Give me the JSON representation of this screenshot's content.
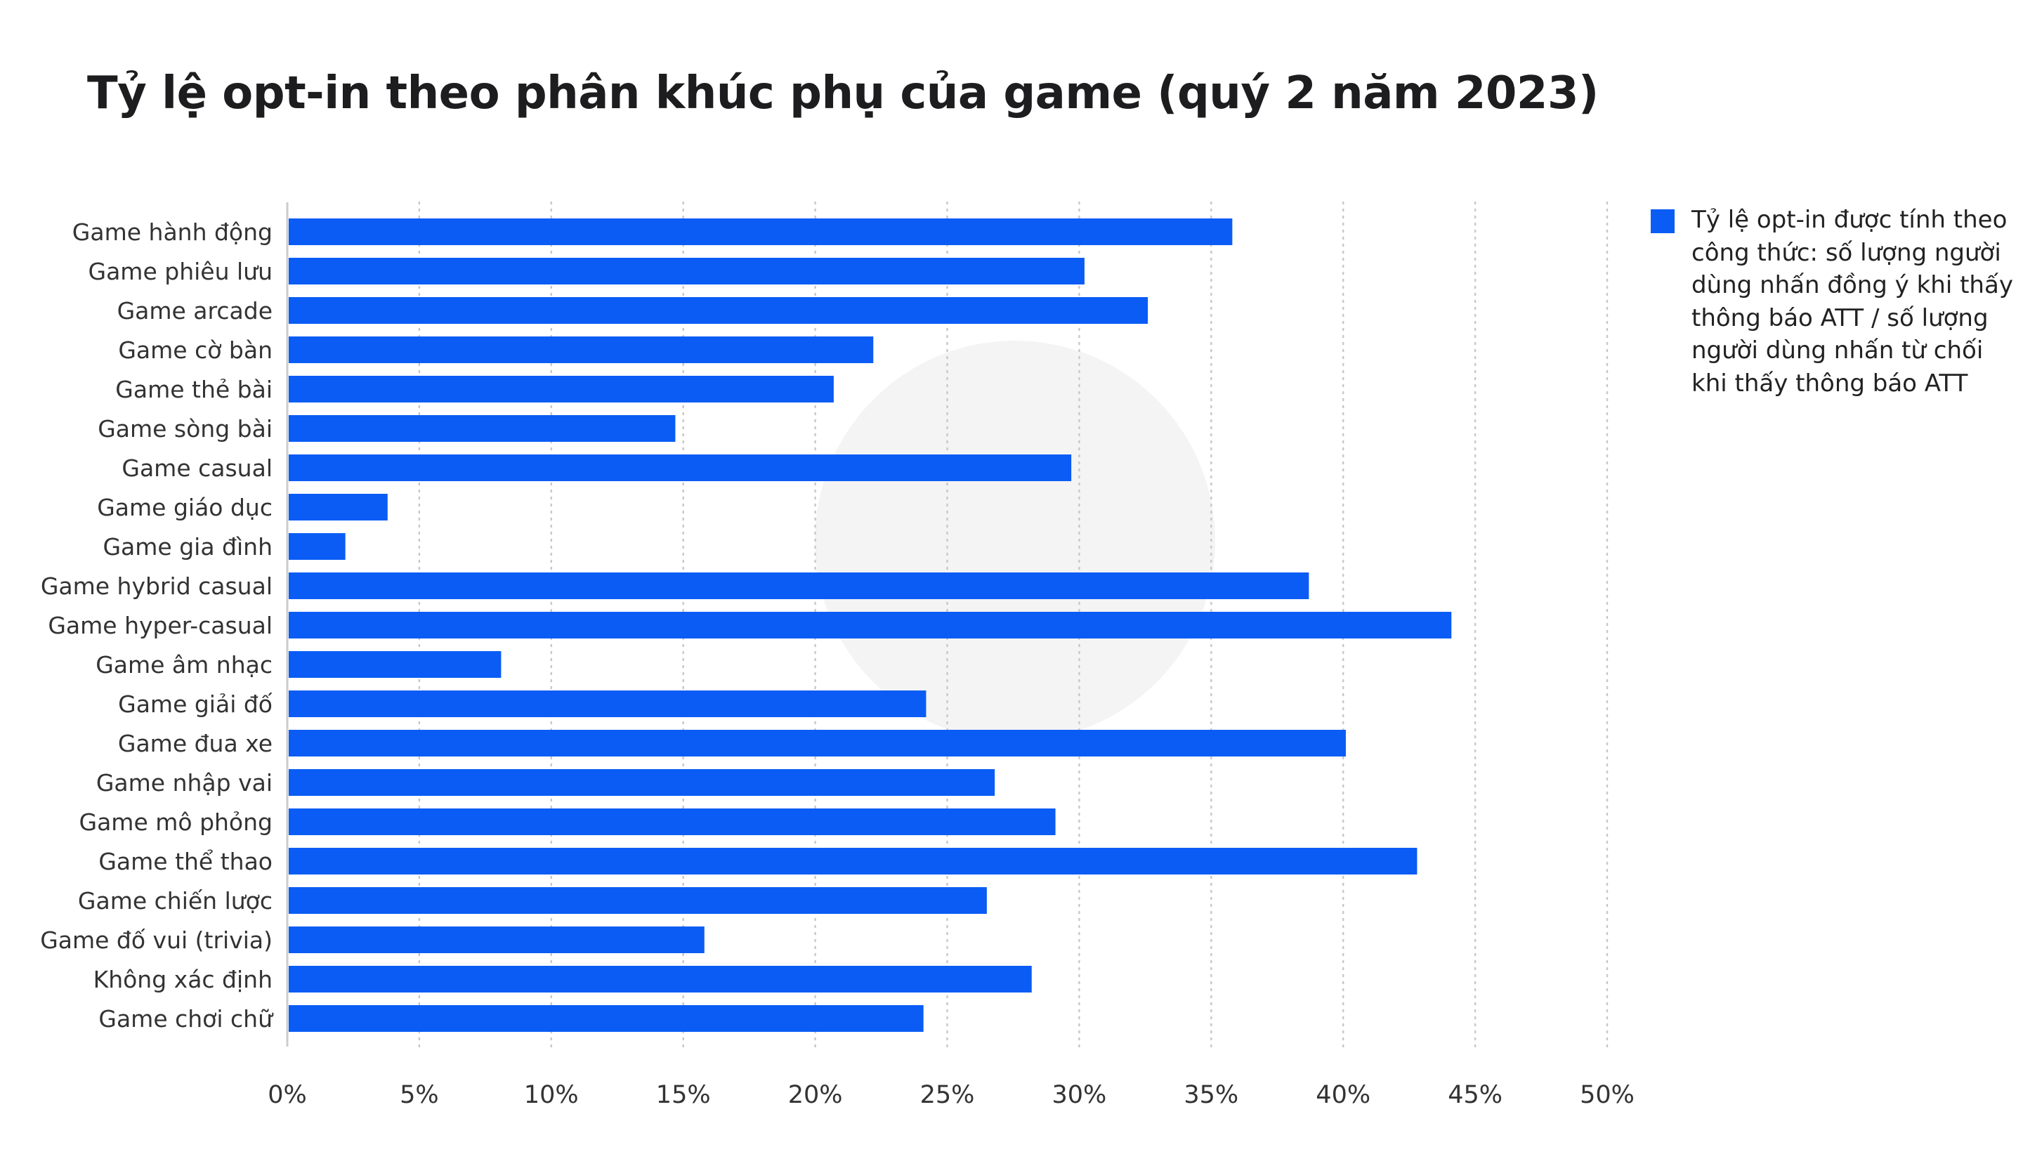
{
  "chart_data": {
    "type": "bar",
    "orientation": "horizontal",
    "title": "Tỷ lệ opt-in theo phân khúc phụ của game (quý 2 năm 2023)",
    "xlabel": "",
    "ylabel": "",
    "xlim": [
      0,
      50
    ],
    "x_ticks": [
      "0%",
      "5%",
      "10%",
      "15%",
      "20%",
      "25%",
      "30%",
      "35%",
      "40%",
      "45%",
      "50%"
    ],
    "grid": "vertical dotted",
    "legend_position": "right",
    "categories": [
      "Game hành động",
      "Game phiêu lưu",
      "Game arcade",
      "Game cờ bàn",
      "Game thẻ bài",
      "Game sòng bài",
      "Game casual",
      "Game giáo dục",
      "Game gia đình",
      "Game hybrid casual",
      "Game hyper-casual",
      "Game âm nhạc",
      "Game giải đố",
      "Game đua xe",
      "Game nhập vai",
      "Game mô phỏng",
      "Game thể thao",
      "Game chiến lược",
      "Game đố vui (trivia)",
      "Không xác định",
      "Game chơi chữ"
    ],
    "series": [
      {
        "name": "Tỷ lệ opt-in được tính theo công thức: số lượng người dùng nhấn đồng ý khi thấy thông báo ATT / số lượng người dùng nhấn từ chối khi thấy thông báo ATT",
        "color": "#0a5cf5",
        "values": [
          35.8,
          30.2,
          32.6,
          22.2,
          20.7,
          14.7,
          29.7,
          3.8,
          2.2,
          38.7,
          44.1,
          8.1,
          24.2,
          40.1,
          26.8,
          29.1,
          42.8,
          26.5,
          15.8,
          28.2,
          24.1
        ]
      }
    ]
  }
}
